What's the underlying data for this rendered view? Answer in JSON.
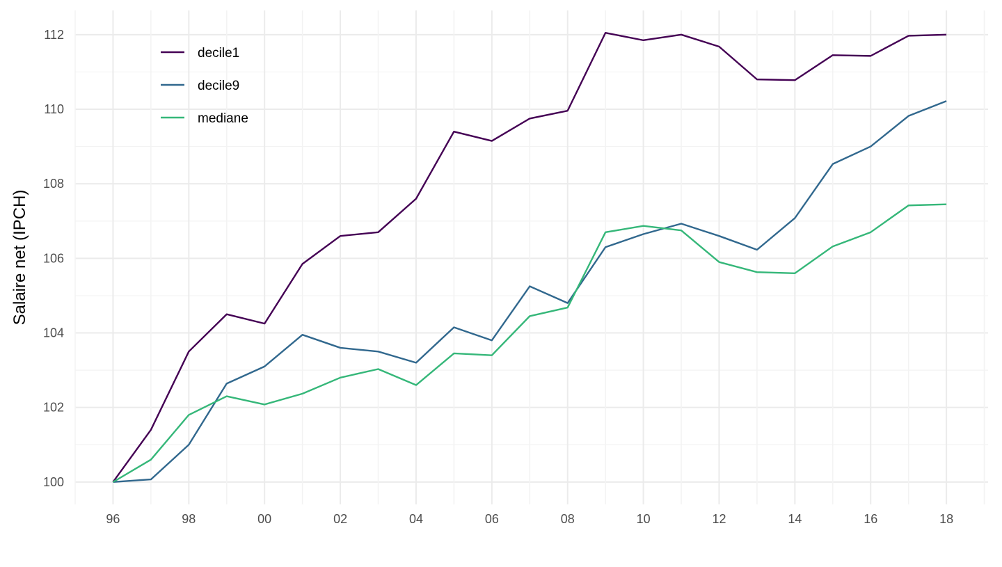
{
  "chart_data": {
    "type": "line",
    "title": "",
    "xlabel": "",
    "ylabel": "Salaire net (IPCH)",
    "x": [
      1996,
      1997,
      1998,
      1999,
      2000,
      2001,
      2002,
      2003,
      2004,
      2005,
      2006,
      2007,
      2008,
      2009,
      2010,
      2011,
      2012,
      2013,
      2014,
      2015,
      2016,
      2017,
      2018
    ],
    "x_tick_values": [
      1996,
      1998,
      2000,
      2002,
      2004,
      2006,
      2008,
      2010,
      2012,
      2014,
      2016,
      2018
    ],
    "x_tick_labels": [
      "96",
      "98",
      "00",
      "02",
      "04",
      "06",
      "08",
      "10",
      "12",
      "14",
      "16",
      "18"
    ],
    "y_tick_values": [
      100,
      102,
      104,
      106,
      108,
      110,
      112
    ],
    "y_tick_labels": [
      "100",
      "102",
      "104",
      "106",
      "108",
      "110",
      "112"
    ],
    "xlim": [
      1995,
      2019.1
    ],
    "ylim": [
      99.4,
      112.65
    ],
    "grid": true,
    "legend_position": "top-left",
    "series": [
      {
        "name": "decile1",
        "color": "#440154",
        "values": [
          100,
          101.4,
          103.5,
          104.5,
          104.25,
          105.85,
          106.6,
          106.7,
          107.6,
          109.4,
          109.15,
          109.75,
          109.96,
          112.05,
          111.85,
          112.0,
          111.68,
          110.8,
          110.78,
          111.45,
          111.43,
          111.97,
          112.0
        ]
      },
      {
        "name": "decile9",
        "color": "#31688E",
        "values": [
          100,
          100.07,
          101.0,
          102.64,
          103.1,
          103.95,
          103.6,
          103.5,
          103.2,
          104.15,
          103.8,
          105.25,
          104.8,
          106.3,
          106.65,
          106.93,
          106.6,
          106.23,
          107.08,
          108.53,
          109.0,
          109.82,
          110.22
        ]
      },
      {
        "name": "mediane",
        "color": "#35B779",
        "values": [
          100,
          100.6,
          101.8,
          102.3,
          102.08,
          102.37,
          102.8,
          103.03,
          102.6,
          103.45,
          103.4,
          104.45,
          104.68,
          106.7,
          106.87,
          106.75,
          105.9,
          105.63,
          105.6,
          106.32,
          106.7,
          107.42,
          107.45
        ]
      }
    ]
  }
}
